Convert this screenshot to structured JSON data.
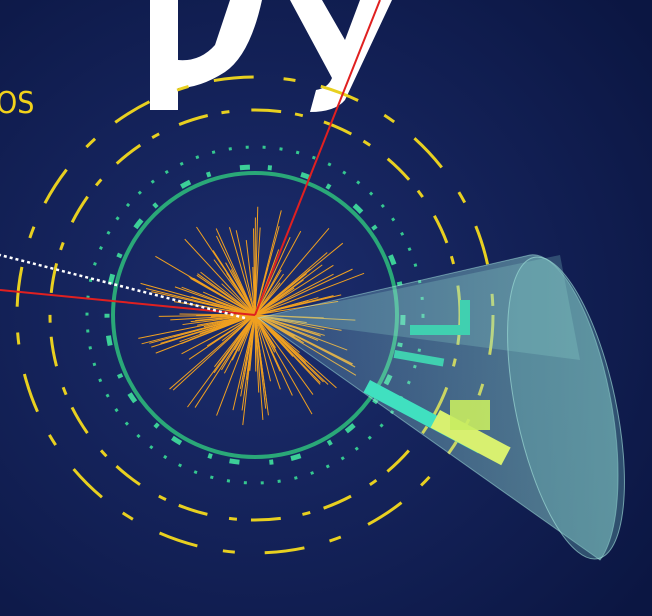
{
  "labels": {
    "corner_text": "OS"
  }
}
